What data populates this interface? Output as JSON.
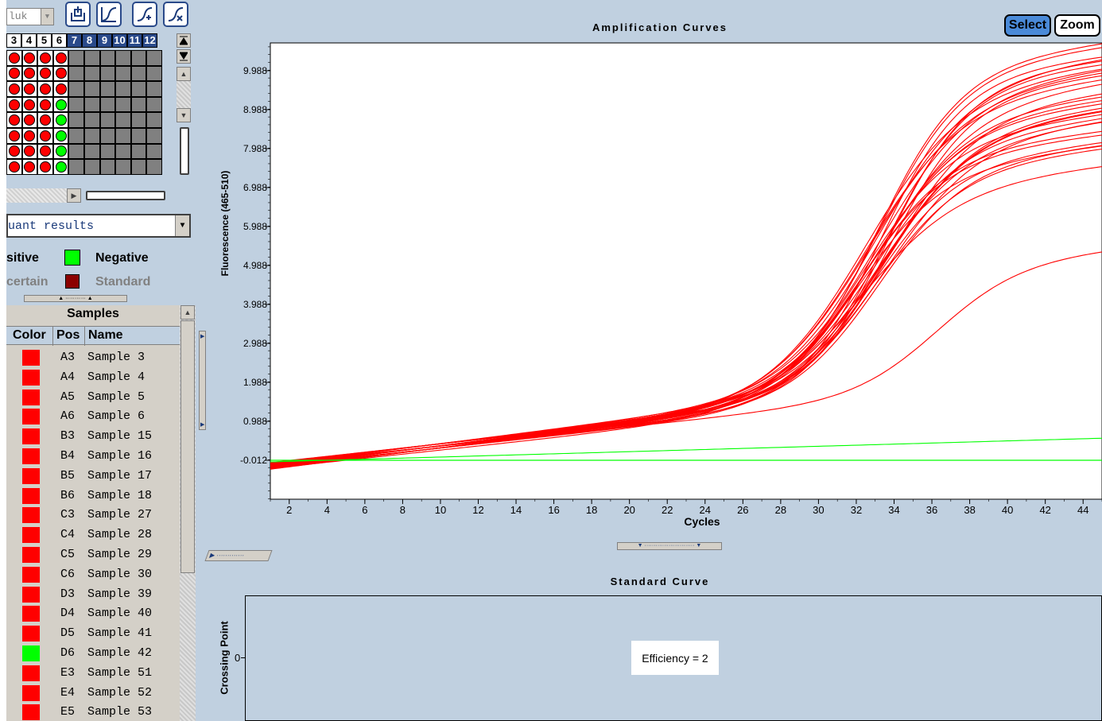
{
  "toolbar": {
    "run_dropdown": "luk",
    "icons": [
      "export-icon",
      "curve-select-icon",
      "curve-add-icon",
      "curve-remove-icon"
    ]
  },
  "plate": {
    "columns": [
      "3",
      "4",
      "5",
      "6",
      "7",
      "8",
      "9",
      "10",
      "11",
      "12"
    ],
    "active_columns": 4,
    "rows": [
      [
        "red",
        "red",
        "red",
        "red"
      ],
      [
        "red",
        "red",
        "red",
        "red"
      ],
      [
        "red",
        "red",
        "red",
        "red"
      ],
      [
        "red",
        "red",
        "red",
        "green"
      ],
      [
        "red",
        "red",
        "red",
        "green"
      ],
      [
        "red",
        "red",
        "red",
        "green"
      ],
      [
        "red",
        "red",
        "red",
        "green"
      ],
      [
        "red",
        "red",
        "red",
        "green"
      ]
    ]
  },
  "results_dropdown": "uant results",
  "legend": {
    "positive": "sitive",
    "negative": "Negative",
    "uncertain": "certain",
    "standard": "Standard",
    "negative_color": "#00ff00",
    "standard_color": "#8b0000"
  },
  "samples": {
    "title": "Samples",
    "headers": [
      "Color",
      "Pos",
      "Name"
    ],
    "rows": [
      {
        "color": "#ff0000",
        "pos": "A3",
        "name": "Sample 3"
      },
      {
        "color": "#ff0000",
        "pos": "A4",
        "name": "Sample 4"
      },
      {
        "color": "#ff0000",
        "pos": "A5",
        "name": "Sample 5"
      },
      {
        "color": "#ff0000",
        "pos": "A6",
        "name": "Sample 6"
      },
      {
        "color": "#ff0000",
        "pos": "B3",
        "name": "Sample 15"
      },
      {
        "color": "#ff0000",
        "pos": "B4",
        "name": "Sample 16"
      },
      {
        "color": "#ff0000",
        "pos": "B5",
        "name": "Sample 17"
      },
      {
        "color": "#ff0000",
        "pos": "B6",
        "name": "Sample 18"
      },
      {
        "color": "#ff0000",
        "pos": "C3",
        "name": "Sample 27"
      },
      {
        "color": "#ff0000",
        "pos": "C4",
        "name": "Sample 28"
      },
      {
        "color": "#ff0000",
        "pos": "C5",
        "name": "Sample 29"
      },
      {
        "color": "#ff0000",
        "pos": "C6",
        "name": "Sample 30"
      },
      {
        "color": "#ff0000",
        "pos": "D3",
        "name": "Sample 39"
      },
      {
        "color": "#ff0000",
        "pos": "D4",
        "name": "Sample 40"
      },
      {
        "color": "#ff0000",
        "pos": "D5",
        "name": "Sample 41"
      },
      {
        "color": "#00ff00",
        "pos": "D6",
        "name": "Sample 42"
      },
      {
        "color": "#ff0000",
        "pos": "E3",
        "name": "Sample 51"
      },
      {
        "color": "#ff0000",
        "pos": "E4",
        "name": "Sample 52"
      },
      {
        "color": "#ff0000",
        "pos": "E5",
        "name": "Sample 53"
      }
    ]
  },
  "chart_buttons": {
    "select": "Select",
    "zoom": "Zoom"
  },
  "chart_data": [
    {
      "type": "line",
      "title": "Amplification Curves",
      "xlabel": "Cycles",
      "ylabel": "Fluorescence (465-510)",
      "xlim": [
        1,
        45
      ],
      "ylim": [
        -1.012,
        10.7
      ],
      "x_ticks": [
        "2",
        "4",
        "6",
        "8",
        "10",
        "12",
        "14",
        "16",
        "18",
        "20",
        "22",
        "24",
        "26",
        "28",
        "30",
        "32",
        "34",
        "36",
        "38",
        "40",
        "42",
        "44"
      ],
      "y_ticks": [
        "-0.012",
        "0.988",
        "1.988",
        "2.988",
        "3.988",
        "4.988",
        "5.988",
        "6.988",
        "7.988",
        "8.988",
        "9.988"
      ],
      "series_color_positive": "#ff0000",
      "series_color_negative": "#00ff00",
      "positive_series_count": 30,
      "positive_curve_points_typical": [
        [
          1,
          -0.15
        ],
        [
          4,
          -0.012
        ],
        [
          10,
          0.45
        ],
        [
          20,
          1.0
        ],
        [
          26,
          1.6
        ],
        [
          28,
          2.1
        ],
        [
          30,
          3.0
        ],
        [
          32,
          4.5
        ],
        [
          34,
          6.0
        ],
        [
          36,
          7.0
        ],
        [
          38,
          7.6
        ],
        [
          40,
          7.9
        ],
        [
          42,
          8.1
        ],
        [
          45,
          8.3
        ]
      ],
      "positive_plateau_range": [
        6.9,
        9.8
      ],
      "weak_positive_curve_points": [
        [
          26,
          1.6
        ],
        [
          30,
          2.0
        ],
        [
          34,
          2.6
        ],
        [
          36,
          3.8
        ],
        [
          38,
          4.6
        ],
        [
          40,
          4.9
        ],
        [
          42,
          5.1
        ],
        [
          45,
          5.4
        ]
      ],
      "negative_curve_points_1": [
        [
          1,
          -0.012
        ],
        [
          45,
          -0.012
        ]
      ],
      "negative_curve_points_2": [
        [
          1,
          -0.012
        ],
        [
          10,
          0.06
        ],
        [
          20,
          0.2
        ],
        [
          30,
          0.35
        ],
        [
          45,
          0.55
        ]
      ]
    },
    {
      "type": "scatter",
      "title": "Standard Curve",
      "ylabel": "Crossing Point",
      "y_ticks": [
        "0"
      ],
      "annotation": "Efficiency = 2"
    }
  ]
}
